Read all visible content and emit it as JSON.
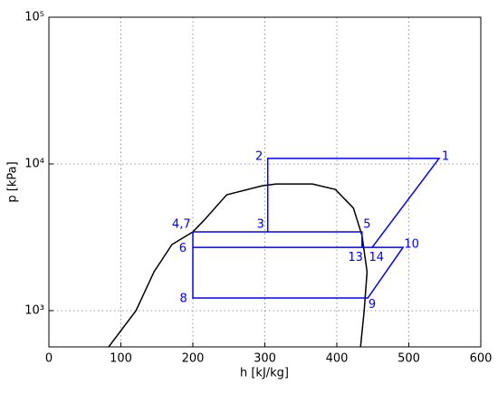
{
  "chart_data": {
    "type": "line",
    "xlabel": "h [kJ/kg]",
    "ylabel": "p [kPa]",
    "xlim": [
      0,
      600
    ],
    "xticks": [
      0,
      100,
      200,
      300,
      400,
      500,
      600
    ],
    "ylim": [
      566,
      100000
    ],
    "ylog": true,
    "yticks": [
      {
        "value": 1000,
        "label": "10³"
      },
      {
        "value": 10000,
        "label": "10⁴"
      },
      {
        "value": 100000,
        "label": "10⁵"
      }
    ],
    "grid": true,
    "series": [
      {
        "color": "#000000",
        "x": [
          83,
          121,
          146,
          171,
          200,
          215,
          247,
          297,
          316,
          366,
          398,
          423,
          435,
          442,
          438,
          433
        ],
        "values": [
          566,
          1000,
          1840,
          2820,
          3440,
          4100,
          6170,
          7110,
          7300,
          7300,
          6700,
          5000,
          3250,
          1840,
          1000,
          566
        ]
      },
      {
        "color": "#0000ff",
        "x": [
          304,
          304,
          542,
          449,
          null,
          200,
          435,
          435,
          null,
          200,
          492,
          443,
          200,
          200
        ],
        "values": [
          3440,
          10900,
          10900,
          2700,
          null,
          3440,
          3440,
          2700,
          null,
          2700,
          2700,
          1220,
          1220,
          3440
        ]
      }
    ],
    "annotations": [
      {
        "text": "1",
        "x": 551,
        "y": 11200
      },
      {
        "text": "2",
        "x": 292,
        "y": 11200
      },
      {
        "text": "3",
        "x": 294,
        "y": 3850
      },
      {
        "text": "4,7",
        "x": 184,
        "y": 3850
      },
      {
        "text": "5",
        "x": 442,
        "y": 3850
      },
      {
        "text": "6",
        "x": 186,
        "y": 2650
      },
      {
        "text": "13",
        "x": 426,
        "y": 2300
      },
      {
        "text": "14",
        "x": 455,
        "y": 2300
      },
      {
        "text": "10",
        "x": 504,
        "y": 2820
      },
      {
        "text": "8",
        "x": 187,
        "y": 1200
      },
      {
        "text": "9",
        "x": 449,
        "y": 1100
      }
    ],
    "annotation_color": "#0000ff"
  }
}
